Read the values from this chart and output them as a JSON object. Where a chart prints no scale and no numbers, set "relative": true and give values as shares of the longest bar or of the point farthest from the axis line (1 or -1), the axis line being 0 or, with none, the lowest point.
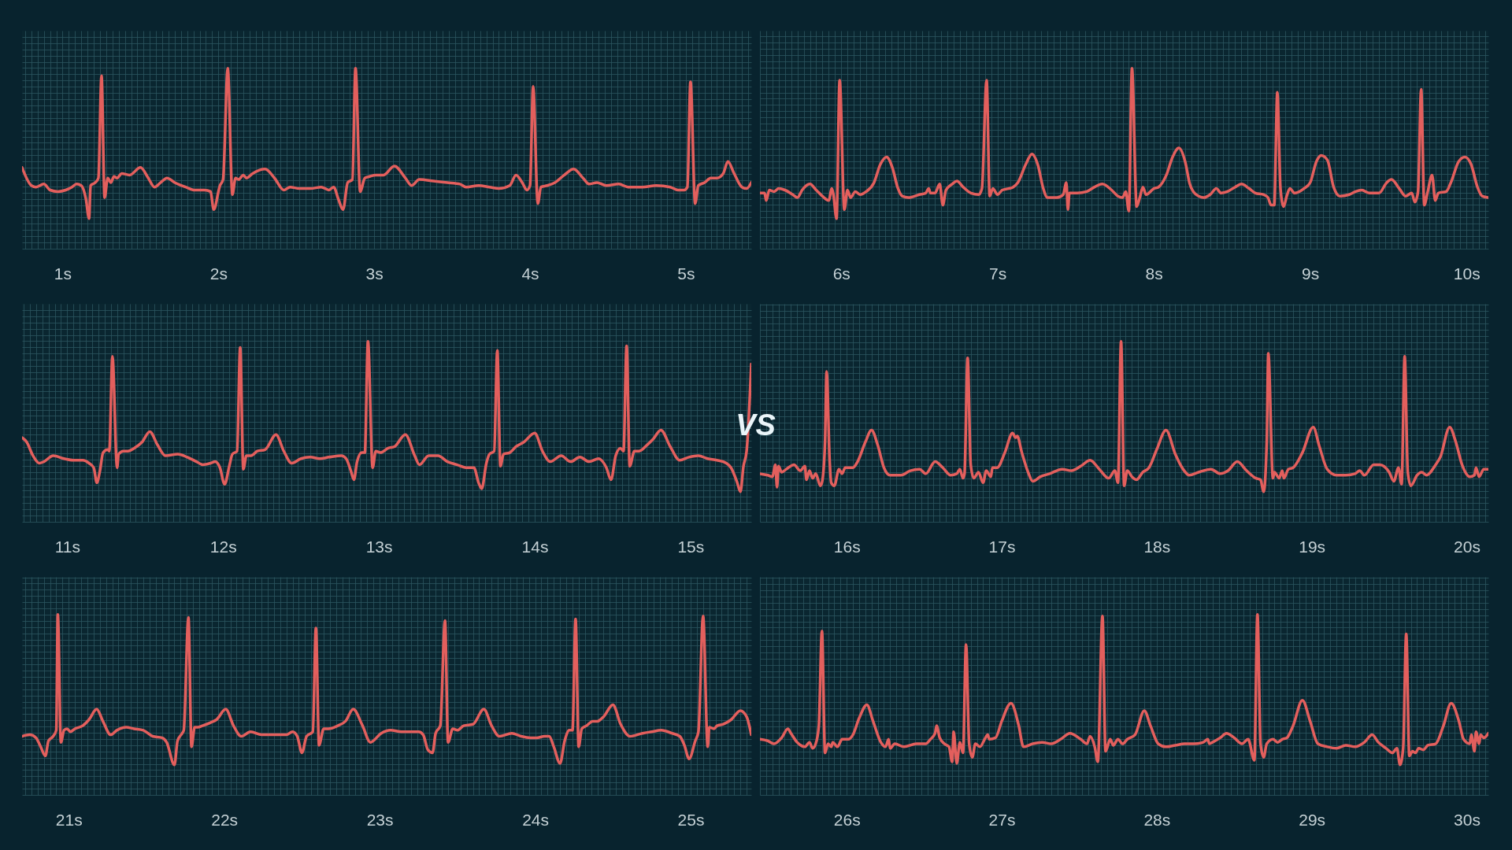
{
  "chart_data": [
    {
      "type": "line",
      "relative": true,
      "grid": true,
      "tick_labels": "x",
      "xlim": [
        0.74,
        5.42
      ],
      "xticks": [
        {
          "value": 1,
          "label": "1s"
        },
        {
          "value": 2,
          "label": "2s"
        },
        {
          "value": 3,
          "label": "3s"
        },
        {
          "value": 4,
          "label": "4s"
        },
        {
          "value": 5,
          "label": "5s"
        }
      ],
      "x": [
        0.74,
        0.8,
        0.83,
        0.88,
        0.92,
        0.97,
        1.02,
        1.06,
        1.09,
        1.12,
        1.15,
        1.17,
        1.18,
        1.21,
        1.23,
        1.25,
        1.27,
        1.29,
        1.31,
        1.33,
        1.35,
        1.38,
        1.43,
        1.5,
        1.55,
        1.59,
        1.63,
        1.67,
        1.72,
        1.79,
        1.85,
        1.91,
        1.95,
        1.97,
        2.01,
        2.03,
        2.06,
        2.09,
        2.11,
        2.13,
        2.16,
        2.18,
        2.22,
        2.3,
        2.36,
        2.42,
        2.46,
        2.52,
        2.59,
        2.66,
        2.71,
        2.74,
        2.77,
        2.8,
        2.83,
        2.86,
        2.88,
        2.91,
        2.94,
        2.97,
        3.01,
        3.06,
        3.13,
        3.2,
        3.24,
        3.29,
        3.38,
        3.47,
        3.55,
        3.59,
        3.67,
        3.74,
        3.8,
        3.87,
        3.91,
        3.95,
        3.98,
        4.0,
        4.02,
        4.05,
        4.07,
        4.11,
        4.16,
        4.22,
        4.28,
        4.34,
        4.38,
        4.43,
        4.49,
        4.57,
        4.63,
        4.72,
        4.81,
        4.9,
        4.95,
        4.99,
        5.01,
        5.03,
        5.06,
        5.08,
        5.12,
        5.16,
        5.2,
        5.24,
        5.27,
        5.31,
        5.36,
        5.39,
        5.42
      ],
      "series": [
        {
          "color": "#e35f5d",
          "values": [
            0.34,
            0.22,
            0.21,
            0.23,
            0.19,
            0.18,
            0.19,
            0.21,
            0.23,
            0.22,
            0.13,
            0,
            0.22,
            0.24,
            0.27,
            0.95,
            0.14,
            0.27,
            0.24,
            0.28,
            0.27,
            0.3,
            0.29,
            0.34,
            0.27,
            0.21,
            0.24,
            0.27,
            0.24,
            0.21,
            0.19,
            0.19,
            0.18,
            0.06,
            0.22,
            0.26,
            1.0,
            0.16,
            0.27,
            0.26,
            0.29,
            0.27,
            0.3,
            0.33,
            0.27,
            0.19,
            0.21,
            0.2,
            0.2,
            0.21,
            0.19,
            0.21,
            0.13,
            0.06,
            0.24,
            0.26,
            1.0,
            0.18,
            0.27,
            0.28,
            0.29,
            0.29,
            0.35,
            0.27,
            0.22,
            0.26,
            0.25,
            0.24,
            0.23,
            0.21,
            0.22,
            0.21,
            0.2,
            0.22,
            0.29,
            0.24,
            0.19,
            0.22,
            0.88,
            0.1,
            0.21,
            0.22,
            0.24,
            0.29,
            0.33,
            0.27,
            0.23,
            0.24,
            0.22,
            0.23,
            0.21,
            0.21,
            0.22,
            0.21,
            0.19,
            0.19,
            0.21,
            0.91,
            0.1,
            0.22,
            0.24,
            0.27,
            0.27,
            0.3,
            0.38,
            0.3,
            0.21,
            0.2,
            0.24
          ]
        }
      ]
    },
    {
      "type": "line",
      "relative": true,
      "grid": true,
      "tick_labels": "x",
      "xlim": [
        5.48,
        10.14
      ],
      "xticks": [
        {
          "value": 6,
          "label": "6s"
        },
        {
          "value": 7,
          "label": "7s"
        },
        {
          "value": 8,
          "label": "8s"
        },
        {
          "value": 9,
          "label": "9s"
        },
        {
          "value": 10,
          "label": "10s"
        }
      ],
      "x": [
        5.48,
        5.51,
        5.52,
        5.54,
        5.57,
        5.6,
        5.64,
        5.69,
        5.72,
        5.75,
        5.8,
        5.84,
        5.89,
        5.92,
        5.94,
        5.95,
        5.97,
        5.99,
        6.02,
        6.04,
        6.06,
        6.09,
        6.12,
        6.16,
        6.21,
        6.25,
        6.29,
        6.33,
        6.36,
        6.39,
        6.43,
        6.5,
        6.54,
        6.56,
        6.57,
        6.6,
        6.63,
        6.65,
        6.67,
        6.71,
        6.74,
        6.78,
        6.83,
        6.88,
        6.9,
        6.93,
        6.95,
        6.97,
        7.0,
        7.03,
        7.07,
        7.1,
        7.13,
        7.18,
        7.22,
        7.26,
        7.29,
        7.32,
        7.38,
        7.42,
        7.44,
        7.45,
        7.46,
        7.51,
        7.57,
        7.62,
        7.67,
        7.73,
        7.77,
        7.8,
        7.82,
        7.84,
        7.86,
        7.89,
        7.91,
        7.93,
        7.95,
        8.0,
        8.03,
        8.08,
        8.12,
        8.16,
        8.2,
        8.23,
        8.27,
        8.32,
        8.36,
        8.4,
        8.43,
        8.47,
        8.52,
        8.56,
        8.61,
        8.65,
        8.7,
        8.73,
        8.75,
        8.77,
        8.79,
        8.81,
        8.83,
        8.85,
        8.87,
        8.9,
        8.96,
        9.0,
        9.04,
        9.07,
        9.11,
        9.15,
        9.19,
        9.25,
        9.29,
        9.33,
        9.38,
        9.44,
        9.49,
        9.52,
        9.57,
        9.61,
        9.65,
        9.67,
        9.69,
        9.71,
        9.73,
        9.75,
        9.78,
        9.8,
        9.82,
        9.87,
        9.9,
        9.95,
        9.99,
        10.03,
        10.07,
        10.1,
        10.14
      ],
      "series": [
        {
          "color": "#e35f5d",
          "values": [
            0.17,
            0.17,
            0.12,
            0.19,
            0.18,
            0.2,
            0.19,
            0.16,
            0.14,
            0.19,
            0.23,
            0.19,
            0.14,
            0.12,
            0.2,
            0.16,
            0,
            0.92,
            0.06,
            0.19,
            0.14,
            0.18,
            0.16,
            0.18,
            0.24,
            0.36,
            0.41,
            0.33,
            0.21,
            0.15,
            0.14,
            0.16,
            0.17,
            0.2,
            0.17,
            0.17,
            0.23,
            0.09,
            0.19,
            0.23,
            0.25,
            0.21,
            0.17,
            0.16,
            0.2,
            0.92,
            0.15,
            0.2,
            0.16,
            0.19,
            0.2,
            0.21,
            0.24,
            0.36,
            0.43,
            0.35,
            0.21,
            0.14,
            0.14,
            0.16,
            0.24,
            0.06,
            0.17,
            0.17,
            0.18,
            0.21,
            0.23,
            0.19,
            0.15,
            0.14,
            0.18,
            0.05,
            1.0,
            0.08,
            0.14,
            0.21,
            0.16,
            0.2,
            0.21,
            0.29,
            0.41,
            0.47,
            0.38,
            0.23,
            0.16,
            0.14,
            0.16,
            0.2,
            0.17,
            0.18,
            0.21,
            0.23,
            0.2,
            0.17,
            0.16,
            0.14,
            0.09,
            0.09,
            0.84,
            0.2,
            0.08,
            0.15,
            0.2,
            0.17,
            0.2,
            0.24,
            0.38,
            0.42,
            0.39,
            0.21,
            0.15,
            0.16,
            0.18,
            0.19,
            0.17,
            0.17,
            0.24,
            0.26,
            0.2,
            0.15,
            0.17,
            0.11,
            0.18,
            0.86,
            0.09,
            0.17,
            0.29,
            0.12,
            0.17,
            0.18,
            0.24,
            0.38,
            0.41,
            0.36,
            0.21,
            0.15,
            0.14
          ]
        }
      ]
    },
    {
      "type": "line",
      "relative": true,
      "grid": true,
      "tick_labels": "x",
      "xlim": [
        10.71,
        15.39
      ],
      "xticks": [
        {
          "value": 11,
          "label": "11s"
        },
        {
          "value": 12,
          "label": "12s"
        },
        {
          "value": 13,
          "label": "13s"
        },
        {
          "value": 14,
          "label": "14s"
        },
        {
          "value": 15,
          "label": "15s"
        }
      ],
      "x": [
        10.71,
        10.74,
        10.78,
        10.82,
        10.85,
        10.91,
        10.98,
        11.04,
        11.1,
        11.14,
        11.17,
        11.19,
        11.21,
        11.23,
        11.26,
        11.27,
        11.29,
        11.32,
        11.33,
        11.36,
        11.39,
        11.43,
        11.48,
        11.53,
        11.58,
        11.63,
        11.71,
        11.77,
        11.83,
        11.87,
        11.92,
        11.95,
        11.98,
        12.01,
        12.04,
        12.06,
        12.09,
        12.11,
        12.13,
        12.15,
        12.18,
        12.22,
        12.27,
        12.34,
        12.39,
        12.44,
        12.5,
        12.56,
        12.62,
        12.68,
        12.76,
        12.79,
        12.82,
        12.84,
        12.86,
        12.89,
        12.91,
        12.93,
        12.96,
        12.98,
        13.01,
        13.06,
        13.1,
        13.17,
        13.23,
        13.26,
        13.32,
        13.38,
        13.44,
        13.5,
        13.56,
        13.61,
        13.64,
        13.66,
        13.69,
        13.71,
        13.74,
        13.76,
        13.78,
        13.8,
        13.84,
        13.88,
        13.93,
        14.0,
        14.05,
        14.1,
        14.17,
        14.23,
        14.29,
        14.35,
        14.41,
        14.46,
        14.49,
        14.52,
        14.55,
        14.57,
        14.59,
        14.61,
        14.64,
        14.67,
        14.72,
        14.76,
        14.81,
        14.87,
        14.93,
        14.99,
        15.05,
        15.11,
        15.17,
        15.23,
        15.26,
        15.3,
        15.32,
        15.34,
        15.36,
        15.39
      ],
      "series": [
        {
          "color": "#e35f5d",
          "values": [
            0.36,
            0.33,
            0.24,
            0.19,
            0.2,
            0.24,
            0.22,
            0.21,
            0.21,
            0.19,
            0.16,
            0.06,
            0.14,
            0.26,
            0.28,
            0.27,
            0.9,
            0.16,
            0.25,
            0.27,
            0.27,
            0.29,
            0.33,
            0.4,
            0.31,
            0.24,
            0.25,
            0.23,
            0.2,
            0.18,
            0.19,
            0.2,
            0.16,
            0.05,
            0.17,
            0.25,
            0.27,
            0.96,
            0.15,
            0.24,
            0.24,
            0.27,
            0.28,
            0.38,
            0.27,
            0.19,
            0.22,
            0.23,
            0.22,
            0.23,
            0.24,
            0.22,
            0.14,
            0.08,
            0.2,
            0.26,
            0.26,
            1.0,
            0.16,
            0.27,
            0.26,
            0.29,
            0.3,
            0.38,
            0.24,
            0.18,
            0.24,
            0.24,
            0.2,
            0.18,
            0.16,
            0.16,
            0.06,
            0.02,
            0.19,
            0.25,
            0.27,
            0.94,
            0.17,
            0.25,
            0.26,
            0.3,
            0.33,
            0.39,
            0.27,
            0.2,
            0.24,
            0.2,
            0.23,
            0.2,
            0.22,
            0.16,
            0.08,
            0.24,
            0.29,
            0.27,
            0.97,
            0.17,
            0.27,
            0.27,
            0.31,
            0.35,
            0.41,
            0.3,
            0.21,
            0.23,
            0.24,
            0.22,
            0.21,
            0.19,
            0.16,
            0.06,
            0,
            0.17,
            0.27,
            0.85
          ]
        }
      ]
    },
    {
      "type": "other",
      "annotations": [
        "VS"
      ]
    },
    {
      "type": "line",
      "relative": true,
      "grid": true,
      "tick_labels": "x",
      "xlim": [
        15.44,
        20.14
      ],
      "xticks": [
        {
          "value": 16,
          "label": "16s"
        },
        {
          "value": 17,
          "label": "17s"
        },
        {
          "value": 18,
          "label": "18s"
        },
        {
          "value": 19,
          "label": "19s"
        },
        {
          "value": 20,
          "label": "20s"
        }
      ],
      "x": [
        15.44,
        15.49,
        15.52,
        15.54,
        15.55,
        15.56,
        15.58,
        15.61,
        15.66,
        15.7,
        15.73,
        15.74,
        15.76,
        15.78,
        15.8,
        15.83,
        15.84,
        15.86,
        15.87,
        15.89,
        15.9,
        15.92,
        15.95,
        15.97,
        15.99,
        16.04,
        16.07,
        16.12,
        16.16,
        16.2,
        16.24,
        16.28,
        16.35,
        16.41,
        16.47,
        16.51,
        16.57,
        16.62,
        16.67,
        16.71,
        16.73,
        16.75,
        16.76,
        16.78,
        16.8,
        16.82,
        16.85,
        16.88,
        16.9,
        16.93,
        16.94,
        16.97,
        17.02,
        17.07,
        17.09,
        17.1,
        17.13,
        17.17,
        17.2,
        17.25,
        17.31,
        17.39,
        17.45,
        17.51,
        17.57,
        17.63,
        17.69,
        17.73,
        17.75,
        17.77,
        17.79,
        17.81,
        17.84,
        17.87,
        17.91,
        17.95,
        18.0,
        18.06,
        18.12,
        18.17,
        18.21,
        18.27,
        18.35,
        18.41,
        18.46,
        18.52,
        18.58,
        18.64,
        18.67,
        18.69,
        18.71,
        18.72,
        18.75,
        18.76,
        18.79,
        18.81,
        18.82,
        18.85,
        18.88,
        18.94,
        19.01,
        19.05,
        19.1,
        19.16,
        19.22,
        19.28,
        19.31,
        19.34,
        19.4,
        19.44,
        19.5,
        19.53,
        19.56,
        19.58,
        19.6,
        19.62,
        19.64,
        19.68,
        19.71,
        19.74,
        19.8,
        19.83,
        19.89,
        19.93,
        19.97,
        20.02,
        20.05,
        20.06,
        20.08,
        20.11,
        20.14
      ],
      "series": [
        {
          "color": "#e35f5d",
          "values": [
            0.12,
            0.11,
            0.1,
            0.18,
            0.03,
            0.17,
            0.13,
            0.15,
            0.18,
            0.14,
            0.17,
            0.08,
            0.14,
            0.09,
            0.12,
            0.04,
            0.06,
            0.33,
            0.8,
            0.2,
            0.06,
            0.04,
            0.15,
            0.12,
            0.16,
            0.16,
            0.2,
            0.33,
            0.41,
            0.31,
            0.16,
            0.11,
            0.11,
            0.14,
            0.15,
            0.12,
            0.2,
            0.16,
            0.11,
            0.12,
            0.15,
            0.09,
            0.12,
            0.89,
            0.18,
            0.09,
            0.13,
            0.06,
            0.14,
            0.1,
            0.16,
            0.16,
            0.26,
            0.39,
            0.36,
            0.37,
            0.26,
            0.13,
            0.07,
            0.1,
            0.12,
            0.15,
            0.14,
            0.17,
            0.21,
            0.15,
            0.09,
            0.14,
            0.06,
            1.0,
            0.04,
            0.14,
            0.1,
            0.08,
            0.13,
            0.16,
            0.28,
            0.41,
            0.25,
            0.15,
            0.11,
            0.13,
            0.15,
            0.12,
            0.14,
            0.2,
            0.14,
            0.09,
            0.08,
            0,
            0.33,
            0.92,
            0.09,
            0.13,
            0.09,
            0.14,
            0.09,
            0.15,
            0.16,
            0.26,
            0.43,
            0.3,
            0.15,
            0.11,
            0.11,
            0.12,
            0.14,
            0.11,
            0.18,
            0.18,
            0.13,
            0.07,
            0.16,
            0.05,
            0.9,
            0.13,
            0.04,
            0.11,
            0.13,
            0.11,
            0.18,
            0.23,
            0.43,
            0.33,
            0.18,
            0.1,
            0.11,
            0.16,
            0.1,
            0.15,
            0.15
          ]
        }
      ]
    },
    {
      "type": "line",
      "relative": true,
      "grid": true,
      "tick_labels": "x",
      "xlim": [
        20.7,
        25.39
      ],
      "xticks": [
        {
          "value": 21,
          "label": "21s"
        },
        {
          "value": 22,
          "label": "22s"
        },
        {
          "value": 23,
          "label": "23s"
        },
        {
          "value": 24,
          "label": "24s"
        },
        {
          "value": 25,
          "label": "25s"
        }
      ],
      "x": [
        20.7,
        20.75,
        20.79,
        20.82,
        20.85,
        20.87,
        20.9,
        20.92,
        20.93,
        20.95,
        20.97,
        20.99,
        21.01,
        21.04,
        21.09,
        21.13,
        21.18,
        21.22,
        21.27,
        21.31,
        21.37,
        21.42,
        21.48,
        21.54,
        21.6,
        21.63,
        21.68,
        21.7,
        21.73,
        21.74,
        21.77,
        21.79,
        21.81,
        21.83,
        21.86,
        21.91,
        21.95,
        22.01,
        22.06,
        22.11,
        22.17,
        22.24,
        22.32,
        22.4,
        22.44,
        22.47,
        22.5,
        22.53,
        22.57,
        22.59,
        22.61,
        22.64,
        22.67,
        22.73,
        22.78,
        22.83,
        22.89,
        22.94,
        23.01,
        23.07,
        23.14,
        23.21,
        23.25,
        23.28,
        23.31,
        23.34,
        23.36,
        23.39,
        23.42,
        23.44,
        23.47,
        23.5,
        23.54,
        23.6,
        23.67,
        23.72,
        23.77,
        23.85,
        23.91,
        23.97,
        24.01,
        24.06,
        24.09,
        24.12,
        24.16,
        24.19,
        24.22,
        24.24,
        24.26,
        24.28,
        24.3,
        24.33,
        24.37,
        24.4,
        24.44,
        24.5,
        24.55,
        24.61,
        24.69,
        24.75,
        24.81,
        24.88,
        24.93,
        24.96,
        24.99,
        25.03,
        25.05,
        25.08,
        25.11,
        25.12,
        25.15,
        25.17,
        25.21,
        25.26,
        25.32,
        25.36,
        25.39
      ],
      "series": [
        {
          "color": "#e35f5d",
          "values": [
            0.19,
            0.2,
            0.18,
            0.12,
            0.06,
            0.16,
            0.19,
            0.23,
            1.0,
            0.15,
            0.23,
            0.24,
            0.22,
            0.24,
            0.26,
            0.3,
            0.37,
            0.29,
            0.2,
            0.23,
            0.25,
            0.24,
            0.23,
            0.19,
            0.18,
            0.15,
            0,
            0.16,
            0.21,
            0.23,
            0.98,
            0.12,
            0.25,
            0.25,
            0.26,
            0.28,
            0.3,
            0.37,
            0.26,
            0.19,
            0.22,
            0.2,
            0.2,
            0.2,
            0.22,
            0.19,
            0.08,
            0.19,
            0.22,
            0.91,
            0.13,
            0.24,
            0.24,
            0.26,
            0.29,
            0.37,
            0.26,
            0.15,
            0.21,
            0.23,
            0.22,
            0.22,
            0.22,
            0.2,
            0.1,
            0.08,
            0.21,
            0.26,
            0.96,
            0.15,
            0.24,
            0.23,
            0.26,
            0.27,
            0.37,
            0.26,
            0.19,
            0.21,
            0.19,
            0.18,
            0.18,
            0.19,
            0.19,
            0.12,
            0.01,
            0.16,
            0.23,
            0.23,
            0.97,
            0.12,
            0.24,
            0.26,
            0.29,
            0.29,
            0.32,
            0.4,
            0.27,
            0.19,
            0.21,
            0.22,
            0.23,
            0.21,
            0.19,
            0.13,
            0.04,
            0.16,
            0.22,
            0.99,
            0.12,
            0.25,
            0.24,
            0.26,
            0.27,
            0.3,
            0.36,
            0.32,
            0.2
          ]
        }
      ]
    },
    {
      "type": "line",
      "relative": true,
      "grid": true,
      "tick_labels": "x",
      "xlim": [
        25.44,
        30.14
      ],
      "xticks": [
        {
          "value": 26,
          "label": "26s"
        },
        {
          "value": 27,
          "label": "27s"
        },
        {
          "value": 28,
          "label": "28s"
        },
        {
          "value": 29,
          "label": "29s"
        },
        {
          "value": 30,
          "label": "30s"
        }
      ],
      "x": [
        25.44,
        25.49,
        25.53,
        25.58,
        25.62,
        25.64,
        25.68,
        25.73,
        25.76,
        25.78,
        25.8,
        25.82,
        25.84,
        25.86,
        25.88,
        25.9,
        25.91,
        25.94,
        25.97,
        26.01,
        26.04,
        26.08,
        26.13,
        26.17,
        26.22,
        26.25,
        26.27,
        26.28,
        26.31,
        26.37,
        26.45,
        26.51,
        26.54,
        26.57,
        26.58,
        26.6,
        26.63,
        26.66,
        26.68,
        26.69,
        26.71,
        26.73,
        26.75,
        26.77,
        26.79,
        26.81,
        26.83,
        26.86,
        26.89,
        26.91,
        26.92,
        26.96,
        27.0,
        27.06,
        27.11,
        27.14,
        27.2,
        27.26,
        27.32,
        27.38,
        27.44,
        27.51,
        27.55,
        27.57,
        27.6,
        27.62,
        27.65,
        27.67,
        27.7,
        27.72,
        27.75,
        27.78,
        27.81,
        27.86,
        27.92,
        27.96,
        28.01,
        28.06,
        28.12,
        28.18,
        28.24,
        28.3,
        28.33,
        28.34,
        28.36,
        28.41,
        28.45,
        28.5,
        28.55,
        28.59,
        28.63,
        28.65,
        28.67,
        28.69,
        28.71,
        28.75,
        28.78,
        28.81,
        28.84,
        28.88,
        28.94,
        28.99,
        29.04,
        29.1,
        29.16,
        29.22,
        29.28,
        29.34,
        29.39,
        29.43,
        29.48,
        29.52,
        29.55,
        29.57,
        29.59,
        29.61,
        29.63,
        29.65,
        29.67,
        29.69,
        29.72,
        29.75,
        29.8,
        29.85,
        29.9,
        29.95,
        29.98,
        30.02,
        30.03,
        30.05,
        30.06,
        30.08,
        30.09,
        30.11,
        30.14
      ],
      "series": [
        {
          "color": "#e35f5d",
          "values": [
            0.17,
            0.16,
            0.14,
            0.18,
            0.24,
            0.21,
            0.15,
            0.12,
            0.15,
            0.11,
            0.14,
            0.26,
            0.89,
            0.08,
            0.14,
            0.12,
            0.15,
            0.12,
            0.17,
            0.17,
            0.2,
            0.31,
            0.4,
            0.29,
            0.15,
            0.12,
            0.17,
            0.11,
            0.14,
            0.12,
            0.14,
            0.14,
            0.17,
            0.21,
            0.26,
            0.18,
            0.14,
            0.12,
            0.02,
            0.22,
            0.01,
            0.15,
            0.08,
            0.8,
            0.14,
            0.05,
            0.14,
            0.12,
            0.17,
            0.2,
            0.17,
            0.18,
            0.29,
            0.41,
            0.26,
            0.12,
            0.14,
            0.15,
            0.14,
            0.17,
            0.21,
            0.17,
            0.14,
            0.19,
            0.12,
            0.02,
            0.99,
            0.09,
            0.17,
            0.13,
            0.17,
            0.14,
            0.17,
            0.2,
            0.36,
            0.26,
            0.14,
            0.12,
            0.13,
            0.14,
            0.14,
            0.15,
            0.17,
            0.14,
            0.15,
            0.18,
            0.21,
            0.18,
            0.14,
            0.17,
            0.03,
            1.0,
            0.14,
            0.05,
            0.14,
            0.17,
            0.15,
            0.17,
            0.18,
            0.26,
            0.43,
            0.29,
            0.14,
            0.12,
            0.11,
            0.13,
            0.12,
            0.15,
            0.2,
            0.15,
            0.11,
            0.08,
            0.11,
            0,
            0.11,
            0.87,
            0.06,
            0.09,
            0.08,
            0.11,
            0.1,
            0.13,
            0.14,
            0.26,
            0.41,
            0.29,
            0.17,
            0.14,
            0.2,
            0.09,
            0.22,
            0.14,
            0.2,
            0.18,
            0.21
          ]
        }
      ]
    }
  ]
}
